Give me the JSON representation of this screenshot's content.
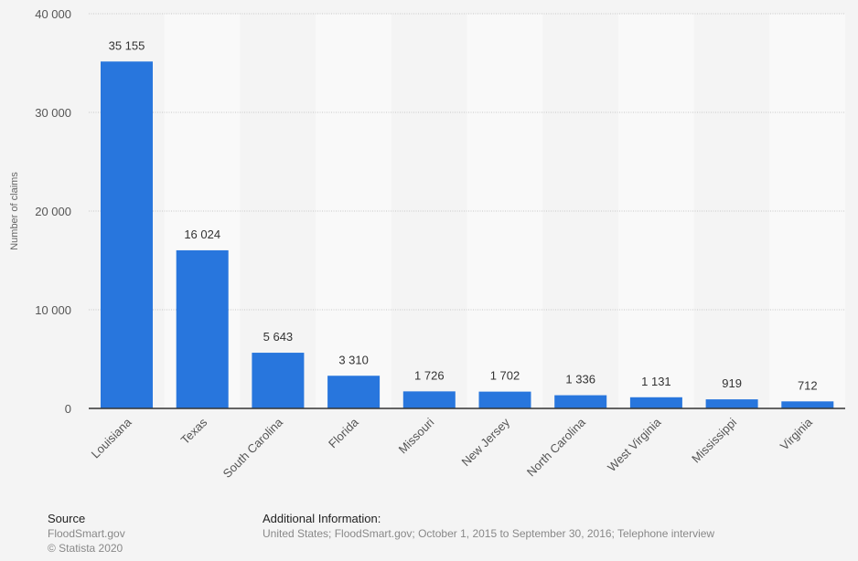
{
  "chart_data": {
    "type": "bar",
    "title": "",
    "xlabel": "",
    "ylabel": "Number of claims",
    "categories": [
      "Louisiana",
      "Texas",
      "South Carolina",
      "Florida",
      "Missouri",
      "New Jersey",
      "North Carolina",
      "West Virginia",
      "Mississippi",
      "Virginia"
    ],
    "values": [
      35155,
      16024,
      5643,
      3310,
      1726,
      1702,
      1336,
      1131,
      919,
      712
    ],
    "value_labels": [
      "35 155",
      "16 024",
      "5 643",
      "3 310",
      "1 726",
      "1 702",
      "1 336",
      "1 131",
      "919",
      "712"
    ],
    "ylim": [
      0,
      40000
    ],
    "yticks": [
      0,
      10000,
      20000,
      30000,
      40000
    ],
    "ytick_labels": [
      "0",
      "10 000",
      "20 000",
      "30 000",
      "40 000"
    ],
    "grid": true,
    "bar_color": "#2876dd"
  },
  "footer": {
    "source_heading": "Source",
    "source_text": "FloodSmart.gov",
    "copyright": "© Statista 2020",
    "info_heading": "Additional Information:",
    "info_text": "United States; FloodSmart.gov; October 1, 2015 to September 30, 2016; Telephone interview"
  }
}
